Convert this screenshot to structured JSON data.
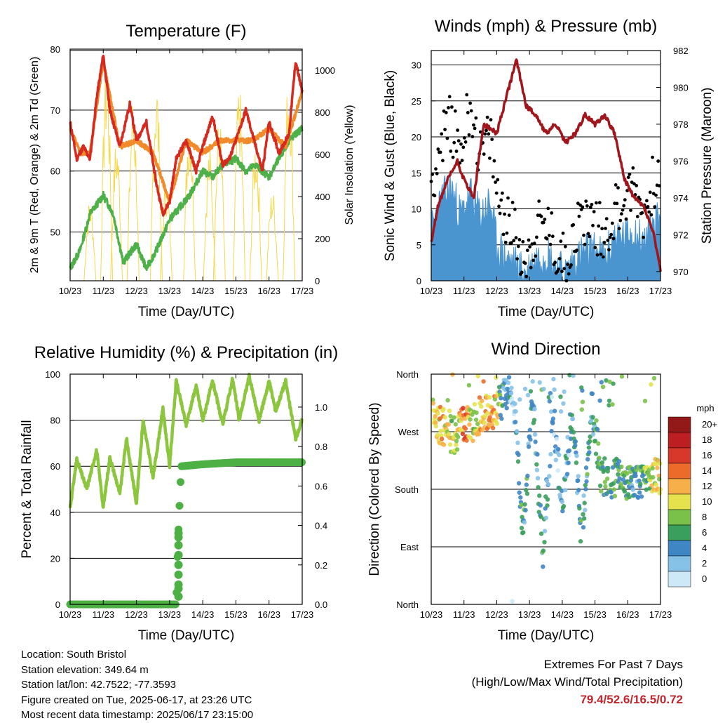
{
  "chart_data": [
    {
      "type": "line",
      "title": "Temperature (F)",
      "xlabel": "Time (Day/UTC)",
      "ylabel": "2m & 9m T (Red, Orange) & 2m Td (Green)",
      "y2label": "Solar Insolation (Yellow)",
      "ylim": [
        42,
        80
      ],
      "y2lim": [
        0,
        1100
      ],
      "yticks": [
        "50",
        "60",
        "70",
        "80"
      ],
      "y2ticks": [
        "0",
        "200",
        "400",
        "600",
        "800",
        "1000"
      ],
      "categories": [
        "10/23",
        "11/23",
        "12/23",
        "13/23",
        "14/23",
        "15/23",
        "16/23",
        "17/23"
      ],
      "grid": true,
      "series": [
        {
          "name": "2m T",
          "color": "#d42a20",
          "x": [
            0,
            0.2,
            0.4,
            0.6,
            0.8,
            1.0,
            1.2,
            1.5,
            1.8,
            2.0,
            2.3,
            2.6,
            2.8,
            3.0,
            3.2,
            3.5,
            3.8,
            4.0,
            4.3,
            4.6,
            4.8,
            5.0,
            5.3,
            5.6,
            5.8,
            6.0,
            6.3,
            6.6,
            6.8,
            7.0
          ],
          "y": [
            68,
            62,
            64,
            62,
            72,
            79,
            70,
            64,
            71,
            65,
            68,
            58,
            53,
            55,
            62,
            65,
            60,
            64,
            69,
            61,
            62,
            65,
            70,
            64,
            60,
            68,
            63,
            66,
            78,
            73
          ]
        },
        {
          "name": "9m T",
          "color": "#f08a2a",
          "x": [
            0,
            0.3,
            0.6,
            1.0,
            1.5,
            2.0,
            2.5,
            3.0,
            3.5,
            4.0,
            4.5,
            5.0,
            5.5,
            6.0,
            6.5,
            7.0
          ],
          "y": [
            67,
            63,
            63,
            78,
            64,
            65,
            63,
            55,
            65,
            63,
            65,
            65,
            65,
            67,
            64,
            73
          ]
        },
        {
          "name": "2m Td",
          "color": "#4eb048",
          "x": [
            0,
            0.3,
            0.6,
            1.0,
            1.3,
            1.6,
            2.0,
            2.3,
            2.6,
            3.0,
            3.3,
            3.6,
            4.0,
            4.3,
            4.6,
            5.0,
            5.3,
            5.6,
            6.0,
            6.3,
            6.6,
            7.0
          ],
          "y": [
            44,
            47,
            53,
            56,
            53,
            45,
            48,
            44,
            47,
            52,
            54,
            56,
            60,
            59,
            61,
            62,
            60,
            61,
            59,
            62,
            65,
            67
          ]
        },
        {
          "name": "Solar Insolation",
          "color": "#f6d84a",
          "axis": "y2",
          "peaks_x": [
            0.6,
            1.1,
            1.4,
            1.9,
            2.6,
            2.9,
            3.6,
            4.2,
            4.5,
            5.1,
            5.6,
            6.1,
            6.6
          ],
          "peaks_y": [
            400,
            1080,
            700,
            900,
            1000,
            500,
            850,
            650,
            800,
            950,
            700,
            450,
            1050
          ]
        }
      ]
    },
    {
      "type": "scatter",
      "title": "Winds (mph) & Pressure (mb)",
      "xlabel": "Time (Day/UTC)",
      "ylabel": "Sonic Wind & Gust (Blue, Black)",
      "y2label": "Station Pressure (Maroon)",
      "ylim": [
        0,
        32
      ],
      "y2lim": [
        969.5,
        982
      ],
      "yticks": [
        "0",
        "5",
        "10",
        "15",
        "20",
        "25",
        "30"
      ],
      "y2ticks": [
        "970",
        "972",
        "974",
        "976",
        "978",
        "980",
        "982"
      ],
      "categories": [
        "10/23",
        "11/23",
        "12/23",
        "13/23",
        "14/23",
        "15/23",
        "16/23",
        "17/23"
      ],
      "grid": true,
      "series": [
        {
          "name": "Gust",
          "color": "#000000",
          "x": [
            0,
            0.3,
            0.6,
            0.9,
            1.2,
            1.5,
            1.8,
            2.0,
            2.3,
            2.6,
            2.9,
            3.2,
            3.5,
            3.8,
            4.1,
            4.4,
            4.7,
            5.0,
            5.3,
            5.6,
            5.9,
            6.2,
            6.5,
            6.8,
            7.0
          ],
          "y": [
            14,
            19,
            22,
            18,
            25,
            17,
            20,
            12,
            9,
            6,
            3,
            7,
            8,
            4,
            3,
            7,
            9,
            8,
            6,
            10,
            11,
            13,
            9,
            14,
            16
          ]
        },
        {
          "name": "Wind",
          "color": "#4a94d0",
          "x": [
            0,
            0.3,
            0.6,
            0.9,
            1.2,
            1.5,
            1.8,
            2.0,
            2.3,
            2.6,
            2.9,
            3.2,
            3.5,
            3.8,
            4.1,
            4.4,
            4.7,
            5.0,
            5.3,
            5.6,
            5.9,
            6.2,
            6.5,
            6.8,
            7.0
          ],
          "y": [
            7,
            11,
            13,
            9,
            12,
            9,
            11,
            5,
            3,
            2,
            1,
            3,
            4,
            2,
            1,
            3,
            4,
            4,
            3,
            6,
            6,
            7,
            5,
            8,
            9
          ]
        },
        {
          "name": "Station Pressure",
          "color": "#a0161c",
          "axis": "y2",
          "x": [
            0,
            0.2,
            0.5,
            0.8,
            1.0,
            1.3,
            1.6,
            2.0,
            2.3,
            2.6,
            2.9,
            3.2,
            3.5,
            3.8,
            4.1,
            4.4,
            4.7,
            5.0,
            5.3,
            5.6,
            5.9,
            6.2,
            6.5,
            6.8,
            7.0
          ],
          "y": [
            971.5,
            973.5,
            975,
            976,
            975,
            974,
            978,
            977.5,
            979.5,
            981.5,
            979,
            978.5,
            977.5,
            978,
            977,
            977.5,
            978.5,
            978,
            978.5,
            977.5,
            975,
            974,
            973.5,
            972,
            970
          ]
        }
      ]
    },
    {
      "type": "line",
      "title": "Relative Humidity (%) & Precipitation (in)",
      "xlabel": "Time (Day/UTC)",
      "ylabel": "Percent & Total Rainfall",
      "ylim": [
        0,
        100
      ],
      "y2lim": [
        0,
        1.167
      ],
      "yticks": [
        "0",
        "20",
        "40",
        "60",
        "80",
        "100"
      ],
      "y2ticks": [
        "0.0",
        "0.2",
        "0.4",
        "0.6",
        "0.8",
        "1.0"
      ],
      "categories": [
        "10/23",
        "11/23",
        "12/23",
        "13/23",
        "14/23",
        "15/23",
        "16/23",
        "17/23"
      ],
      "grid": true,
      "series": [
        {
          "name": "RH",
          "color": "#8cc63e",
          "x": [
            0,
            0.2,
            0.5,
            0.8,
            1.0,
            1.2,
            1.5,
            1.7,
            2.0,
            2.2,
            2.5,
            2.8,
            3.0,
            3.2,
            3.5,
            3.8,
            4.0,
            4.3,
            4.6,
            4.9,
            5.1,
            5.4,
            5.7,
            6.0,
            6.2,
            6.5,
            6.8,
            7.0
          ],
          "y": [
            42,
            63,
            50,
            67,
            42,
            64,
            48,
            72,
            44,
            80,
            55,
            85,
            60,
            97,
            78,
            95,
            80,
            97,
            78,
            98,
            80,
            99,
            80,
            97,
            84,
            97,
            72,
            80
          ]
        },
        {
          "name": "Total Rainfall",
          "color": "#4cb044",
          "axis": "y2",
          "x": [
            0,
            3.2,
            3.25,
            3.3,
            3.35,
            4.0,
            5.0,
            6.0,
            7.0
          ],
          "y": [
            0,
            0,
            0.3,
            0.5,
            0.7,
            0.71,
            0.72,
            0.72,
            0.72
          ]
        }
      ]
    },
    {
      "type": "scatter",
      "title": "Wind Direction",
      "xlabel": "Time (Day/UTC)",
      "ylabel": "Direction (Colored By Speed)",
      "yticks": [
        "North",
        "East",
        "South",
        "West",
        "North"
      ],
      "categories": [
        "10/23",
        "11/23",
        "12/23",
        "13/23",
        "14/23",
        "15/23",
        "16/23",
        "17/23"
      ],
      "grid": true,
      "colorbar": {
        "title": "mph",
        "labels": [
          "0",
          "2",
          "4",
          "6",
          "8",
          "10",
          "12",
          "14",
          "16",
          "18",
          "20+"
        ],
        "colors": [
          "#cde9f8",
          "#86c2e8",
          "#3f86c4",
          "#3a9e5c",
          "#7ac14a",
          "#e6e24e",
          "#f7b049",
          "#ec6b2a",
          "#d8382a",
          "#bc1e22",
          "#931818"
        ]
      },
      "series": [
        {
          "name": "Wind Direction",
          "x": [
            0.1,
            0.4,
            0.7,
            1.0,
            1.3,
            1.6,
            1.9,
            2.2,
            2.5,
            2.8,
            3.1,
            3.4,
            3.7,
            4.0,
            4.3,
            4.6,
            4.9,
            5.2,
            5.5,
            5.8,
            6.1,
            6.4,
            6.7,
            6.9
          ],
          "y": [
            290,
            275,
            265,
            280,
            285,
            300,
            305,
            320,
            340,
            100,
            330,
            80,
            300,
            160,
            300,
            100,
            310,
            200,
            195,
            200,
            190,
            185,
            205,
            200
          ],
          "speed": [
            10,
            12,
            8,
            14,
            9,
            13,
            12,
            5,
            2,
            6,
            3,
            5,
            2,
            4,
            3,
            6,
            4,
            7,
            6,
            7,
            5,
            6,
            9,
            10
          ]
        }
      ]
    }
  ],
  "footer": {
    "location": "Location: South Bristol",
    "elevation": "Station elevation: 349.64 m",
    "latlon": "Station lat/lon: 42.7522; -77.3593",
    "created": "Figure created on Tue, 2025-06-17, at 23:26 UTC",
    "recent": "Most recent data timestamp: 2025/06/17 23:15:00"
  },
  "extremes": {
    "title": "Extremes For Past 7 Days",
    "subtitle": "(High/Low/Max Wind/Total Precipitation)",
    "values": "79.4/52.6/16.5/0.72"
  }
}
